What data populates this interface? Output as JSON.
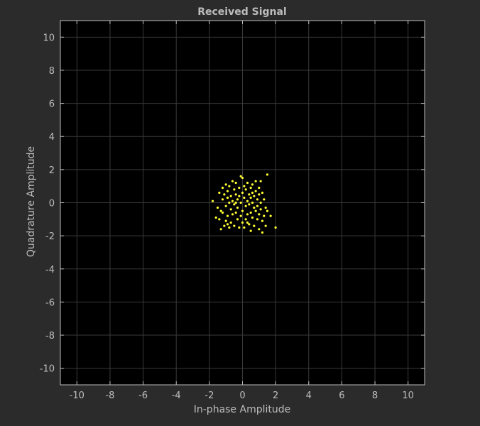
{
  "chart_data": {
    "type": "scatter",
    "title": "Received Signal",
    "xlabel": "In-phase Amplitude",
    "ylabel": "Quadrature Amplitude",
    "xlim": [
      -11,
      11
    ],
    "ylim": [
      -11,
      11
    ],
    "xticks": [
      -10,
      -8,
      -6,
      -4,
      -2,
      0,
      2,
      4,
      6,
      8,
      10
    ],
    "yticks": [
      -10,
      -8,
      -6,
      -4,
      -2,
      0,
      2,
      4,
      6,
      8,
      10
    ],
    "grid": true,
    "background_color": "#000000",
    "figure_color": "#2b2b2b",
    "marker_color": "#ffff33",
    "series": [
      {
        "points": [
          [
            -1.8,
            0.1
          ],
          [
            -1.6,
            -0.9
          ],
          [
            -1.5,
            -0.3
          ],
          [
            -1.4,
            0.6
          ],
          [
            -1.4,
            -1.0
          ],
          [
            -1.3,
            -1.6
          ],
          [
            -1.2,
            0.9
          ],
          [
            -1.2,
            -0.6
          ],
          [
            -1.2,
            0.2
          ],
          [
            -1.1,
            -1.4
          ],
          [
            -1.1,
            0.5
          ],
          [
            -1.0,
            -0.2
          ],
          [
            -1.0,
            1.1
          ],
          [
            -1.0,
            -1.1
          ],
          [
            -0.9,
            0.3
          ],
          [
            -0.9,
            -0.8
          ],
          [
            -0.9,
            0.7
          ],
          [
            -0.8,
            -1.5
          ],
          [
            -0.8,
            0.0
          ],
          [
            -0.8,
            1.0
          ],
          [
            -0.7,
            -0.4
          ],
          [
            -0.7,
            0.4
          ],
          [
            -0.7,
            -1.2
          ],
          [
            -0.6,
            1.3
          ],
          [
            -0.6,
            -0.7
          ],
          [
            -0.6,
            0.1
          ],
          [
            -0.5,
            0.8
          ],
          [
            -0.5,
            -0.1
          ],
          [
            -0.5,
            -1.4
          ],
          [
            -0.4,
            0.5
          ],
          [
            -0.4,
            -0.6
          ],
          [
            -0.4,
            1.2
          ],
          [
            -0.3,
            -1.0
          ],
          [
            -0.3,
            0.2
          ],
          [
            -0.3,
            -0.3
          ],
          [
            -0.2,
            0.9
          ],
          [
            -0.2,
            -1.5
          ],
          [
            -0.2,
            0.4
          ],
          [
            -0.1,
            1.6
          ],
          [
            -0.1,
            -0.8
          ],
          [
            -0.1,
            0.0
          ],
          [
            0.0,
            1.5
          ],
          [
            0.0,
            -0.5
          ],
          [
            0.0,
            0.6
          ],
          [
            0.0,
            -1.2
          ],
          [
            0.1,
            0.3
          ],
          [
            0.1,
            -1.5
          ],
          [
            0.1,
            1.0
          ],
          [
            0.2,
            -0.2
          ],
          [
            0.2,
            0.8
          ],
          [
            0.2,
            -1.0
          ],
          [
            0.3,
            0.1
          ],
          [
            0.3,
            -0.7
          ],
          [
            0.3,
            1.2
          ],
          [
            0.4,
            0.5
          ],
          [
            0.4,
            -1.3
          ],
          [
            0.4,
            -0.1
          ],
          [
            0.5,
            0.9
          ],
          [
            0.5,
            -0.6
          ],
          [
            0.5,
            0.3
          ],
          [
            0.5,
            -1.7
          ],
          [
            0.6,
            0.0
          ],
          [
            0.6,
            1.1
          ],
          [
            0.6,
            -0.9
          ],
          [
            0.7,
            0.4
          ],
          [
            0.7,
            -0.3
          ],
          [
            0.7,
            -1.4
          ],
          [
            0.8,
            0.7
          ],
          [
            0.8,
            -0.5
          ],
          [
            0.8,
            1.3
          ],
          [
            0.9,
            0.2
          ],
          [
            0.9,
            -1.0
          ],
          [
            0.9,
            -0.2
          ],
          [
            1.0,
            0.9
          ],
          [
            1.0,
            -0.7
          ],
          [
            1.0,
            0.5
          ],
          [
            1.0,
            -1.6
          ],
          [
            1.1,
            0.0
          ],
          [
            1.1,
            1.3
          ],
          [
            1.1,
            -0.4
          ],
          [
            1.2,
            0.6
          ],
          [
            1.2,
            -1.1
          ],
          [
            1.2,
            -1.8
          ],
          [
            1.3,
            0.2
          ],
          [
            1.3,
            -0.8
          ],
          [
            1.4,
            -0.3
          ],
          [
            1.4,
            -1.4
          ],
          [
            1.5,
            1.7
          ],
          [
            1.5,
            -0.5
          ],
          [
            1.7,
            -0.8
          ],
          [
            2.0,
            -1.5
          ],
          [
            -1.3,
            -0.5
          ],
          [
            -0.9,
            -1.3
          ],
          [
            0.3,
            -1.2
          ],
          [
            0.6,
            0.6
          ],
          [
            -0.4,
            0.0
          ]
        ]
      }
    ]
  }
}
